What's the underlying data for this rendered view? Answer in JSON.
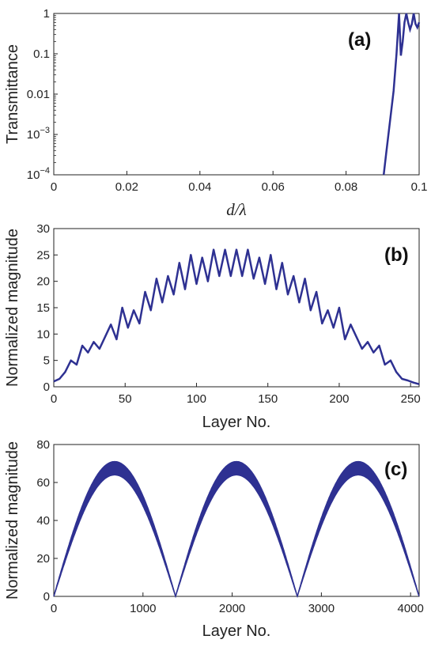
{
  "series_color": "#2e3192",
  "chart_data": [
    {
      "type": "line",
      "panel_label": "(a)",
      "xlabel": "d/λ",
      "ylabel": "Transmittance",
      "yscale": "log",
      "xlim": [
        0,
        0.1
      ],
      "ylim": [
        0.0001,
        1
      ],
      "xticks": [
        "0",
        "0.02",
        "0.04",
        "0.06",
        "0.08",
        "0.1"
      ],
      "yticks": [
        {
          "value": 1,
          "base": "1",
          "exp": ""
        },
        {
          "value": 0.1,
          "base": "0.1",
          "exp": ""
        },
        {
          "value": 0.01,
          "base": "0.01",
          "exp": ""
        },
        {
          "value": 0.001,
          "base": "10",
          "exp": "−3"
        },
        {
          "value": 0.0001,
          "base": "10",
          "exp": "−4"
        }
      ],
      "grid": false,
      "x": [
        0.0903,
        0.091,
        0.092,
        0.093,
        0.0938,
        0.0945,
        0.095,
        0.0955,
        0.096,
        0.0965,
        0.097,
        0.0975,
        0.098,
        0.0985,
        0.099,
        0.0995,
        0.1
      ],
      "y": [
        0.0001,
        0.00035,
        0.002,
        0.012,
        0.1,
        1.0,
        0.09,
        0.2,
        0.6,
        1.0,
        0.6,
        0.4,
        0.55,
        1.0,
        0.55,
        0.45,
        0.6
      ]
    },
    {
      "type": "line",
      "panel_label": "(b)",
      "xlabel": "Layer No.",
      "ylabel": "Normalized magnitude",
      "xlim": [
        0,
        256
      ],
      "ylim": [
        0,
        30
      ],
      "xticks": [
        "0",
        "50",
        "100",
        "150",
        "200",
        "250"
      ],
      "yticks": [
        "0",
        "5",
        "10",
        "15",
        "20",
        "25",
        "30"
      ],
      "grid": false,
      "x": [
        0,
        4,
        8,
        12,
        16,
        20,
        24,
        28,
        32,
        36,
        40,
        44,
        48,
        52,
        56,
        60,
        64,
        68,
        72,
        76,
        80,
        84,
        88,
        92,
        96,
        100,
        104,
        108,
        112,
        116,
        120,
        124,
        128,
        132,
        136,
        140,
        144,
        148,
        152,
        156,
        160,
        164,
        168,
        172,
        176,
        180,
        184,
        188,
        192,
        196,
        200,
        204,
        208,
        212,
        216,
        220,
        224,
        228,
        232,
        236,
        240,
        244,
        248,
        252,
        256
      ],
      "y": [
        1.0,
        1.5,
        2.8,
        5.0,
        4.2,
        7.8,
        6.5,
        8.5,
        7.2,
        9.5,
        11.8,
        9.0,
        15.0,
        11.2,
        14.5,
        12.0,
        18.0,
        14.5,
        20.5,
        16.0,
        21.0,
        17.5,
        23.5,
        18.5,
        25.0,
        19.5,
        24.5,
        20.0,
        26.0,
        21.0,
        26.0,
        21.0,
        26.0,
        21.0,
        26.0,
        20.5,
        24.5,
        19.5,
        25.0,
        18.5,
        23.5,
        17.5,
        21.0,
        16.0,
        20.5,
        14.5,
        18.0,
        12.0,
        14.5,
        11.2,
        15.0,
        9.0,
        11.8,
        9.5,
        7.2,
        8.5,
        6.5,
        7.8,
        4.2,
        5.0,
        2.8,
        1.5,
        1.2,
        0.8,
        0.5
      ]
    },
    {
      "type": "area",
      "panel_label": "(c)",
      "xlabel": "Layer No.",
      "ylabel": "Normalized magnitude",
      "xlim": [
        0,
        4096
      ],
      "ylim": [
        0,
        80
      ],
      "xticks": [
        "0",
        "1000",
        "2000",
        "3000",
        "4000"
      ],
      "yticks": [
        "0",
        "20",
        "40",
        "60",
        "80"
      ],
      "grid": false,
      "description_period": 1365,
      "peaks_upper": 71,
      "peaks_lower": 64,
      "x": [
        0,
        1365,
        2730,
        4096
      ],
      "y": [
        0,
        0,
        0,
        0
      ]
    }
  ]
}
